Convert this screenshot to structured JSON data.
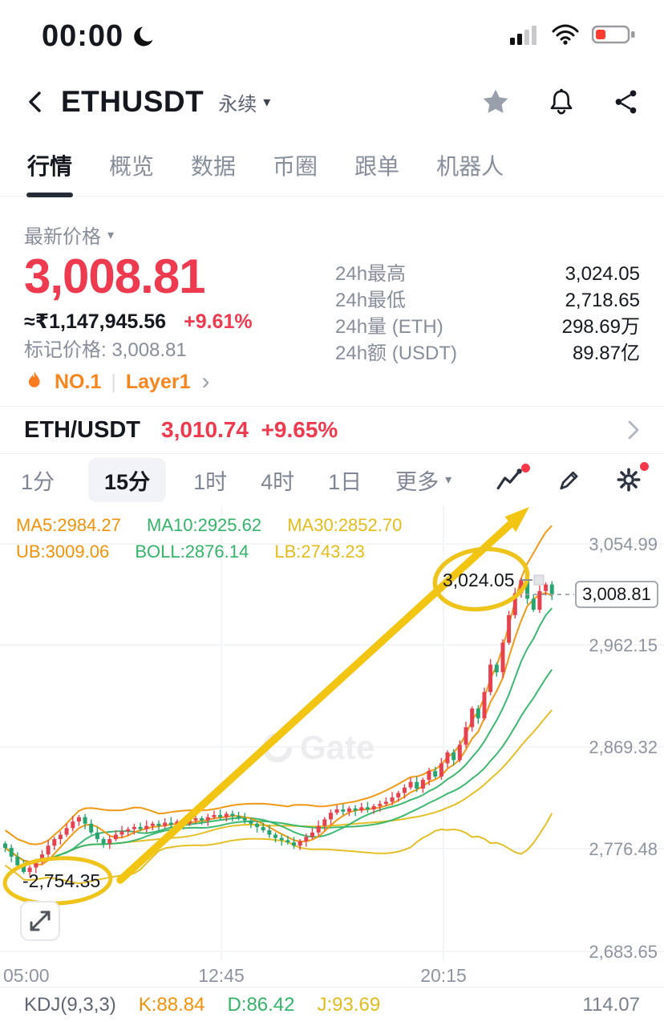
{
  "status_bar": {
    "time": "00:00"
  },
  "header": {
    "title": "ETHUSDT",
    "contract_type": "永续"
  },
  "icons": {
    "caret_down": "▾",
    "chevron_right": "›",
    "pipe": "|"
  },
  "nav_tabs": {
    "items": [
      {
        "label": "行情"
      },
      {
        "label": "概览"
      },
      {
        "label": "数据"
      },
      {
        "label": "币圈"
      },
      {
        "label": "跟单"
      },
      {
        "label": "机器人"
      }
    ]
  },
  "price_section": {
    "latest_price_label": "最新价格",
    "price": "3,008.81",
    "fiat_value": "≈₹1,147,945.56",
    "change_percent": "+9.61%",
    "mark_price": "标记价格: 3,008.81",
    "hot_rank": "NO.1",
    "hot_category": "Layer1"
  },
  "stats": {
    "rows": [
      {
        "label": "24h最高",
        "value": "3,024.05"
      },
      {
        "label": "24h最低",
        "value": "2,718.65"
      },
      {
        "label": "24h量 (ETH)",
        "value": "298.69万"
      },
      {
        "label": "24h额 (USDT)",
        "value": "89.87亿"
      }
    ]
  },
  "spot_row": {
    "pair": "ETH/USDT",
    "price": "3,010.74",
    "change": "+9.65%"
  },
  "timeframes": {
    "items": [
      "1分",
      "15分",
      "1时",
      "4时",
      "1日"
    ],
    "more_label": "更多"
  },
  "chart": {
    "indicators_row1": [
      {
        "label": "MA5:2984.27",
        "color": "#f0930a"
      },
      {
        "label": "MA10:2925.62",
        "color": "#33b469"
      },
      {
        "label": "MA30:2852.70",
        "color": "#e3bc1c"
      }
    ],
    "indicators_row2": [
      {
        "label": "UB:3009.06",
        "color": "#f0930a"
      },
      {
        "label": "BOLL:2876.14",
        "color": "#33b469"
      },
      {
        "label": "LB:2743.23",
        "color": "#e3bc1c"
      }
    ],
    "y_axis_labels": [
      "3,054.99",
      "2,962.15",
      "2,869.32",
      "2,776.48",
      "2,683.65"
    ],
    "x_axis_labels": [
      "05:00",
      "12:45",
      "20:15"
    ],
    "high_marker": "3,024.05",
    "low_marker": "-2,754.35",
    "current_price": "3,008.81",
    "watermark": "Gate",
    "candles_closes": [
      2778,
      2770,
      2762,
      2756,
      2760,
      2765,
      2772,
      2780,
      2786,
      2790,
      2796,
      2802,
      2806,
      2800,
      2792,
      2786,
      2782,
      2786,
      2790,
      2793,
      2795,
      2797,
      2795,
      2798,
      2800,
      2798,
      2801,
      2799,
      2802,
      2800,
      2803,
      2805,
      2803,
      2806,
      2808,
      2806,
      2809,
      2807,
      2805,
      2803,
      2800,
      2797,
      2794,
      2790,
      2787,
      2785,
      2783,
      2780,
      2784,
      2788,
      2792,
      2798,
      2804,
      2810,
      2813,
      2811,
      2814,
      2812,
      2815,
      2813,
      2816,
      2818,
      2820,
      2824,
      2828,
      2833,
      2838,
      2832,
      2840,
      2848,
      2843,
      2855,
      2865,
      2858,
      2872,
      2888,
      2905,
      2896,
      2920,
      2945,
      2938,
      2965,
      2990,
      3010,
      3022,
      3005,
      2995,
      3012,
      3018,
      3008.81
    ]
  },
  "kdj": {
    "title": "KDJ(9,3,3)",
    "items": [
      {
        "label": "K:88.84",
        "color": "#f0930a"
      },
      {
        "label": "D:86.42",
        "color": "#33b469"
      },
      {
        "label": "J:93.69",
        "color": "#e3bc1c"
      }
    ],
    "right_value": "114.07"
  },
  "colors": {
    "up": "#e6414f",
    "down": "#26a571",
    "orange": "#f0930a",
    "green": "#33b469",
    "yellow": "#e3bc1c",
    "accent_red": "#ee3a4e",
    "hot_orange": "#f7851d",
    "annotation_yellow": "#f2c513"
  }
}
